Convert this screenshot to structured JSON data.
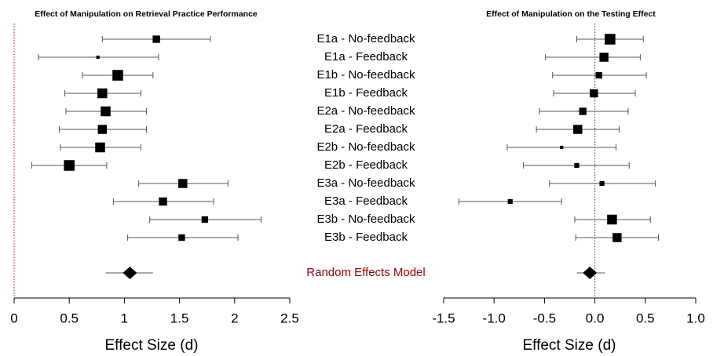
{
  "chart_data": [
    {
      "type": "forest",
      "title": "Effect of Manipulation on Retrieval Practice Performance",
      "xlabel": "Effect Size (d)",
      "categories": [
        "E1a - No-feedback",
        "E1a - Feedback",
        "E1b - No-feedback",
        "E1b - Feedback",
        "E2a - No-feedback",
        "E2a - Feedback",
        "E2b - No-feedback",
        "E2b - Feedback",
        "E3a - No-feedback",
        "E3a - Feedback",
        "E3b - No-feedback",
        "E3b - Feedback"
      ],
      "values": [
        1.29,
        0.76,
        0.94,
        0.8,
        0.83,
        0.8,
        0.78,
        0.5,
        1.53,
        1.35,
        1.73,
        1.52
      ],
      "lower": [
        0.8,
        0.22,
        0.62,
        0.46,
        0.47,
        0.41,
        0.42,
        0.16,
        1.13,
        0.9,
        1.23,
        1.03
      ],
      "upper": [
        1.78,
        1.31,
        1.26,
        1.15,
        1.2,
        1.2,
        1.15,
        0.84,
        1.94,
        1.81,
        2.24,
        2.03
      ],
      "weights": [
        8.1,
        1.6,
        16.9,
        14.4,
        14.4,
        12.1,
        14.4,
        16.9,
        12.1,
        10,
        6.4,
        6.4
      ],
      "model_label": "Random Effects Model",
      "model": {
        "value": 1.05,
        "lower": 0.83,
        "upper": 1.26
      },
      "xlim": [
        0,
        2.5
      ],
      "xticks": [
        0,
        0.5,
        1,
        1.5,
        2,
        2.5
      ],
      "ref_line": 0,
      "ref_color": "#c00000",
      "color": "#000000"
    },
    {
      "type": "forest",
      "title": "Effect of Manipulation on the Testing Effect",
      "xlabel": "Effect Size (d)",
      "values": [
        0.15,
        0.09,
        0.04,
        -0.01,
        -0.12,
        -0.17,
        -0.33,
        -0.18,
        0.07,
        -0.84,
        0.17,
        0.22
      ],
      "lower": [
        -0.18,
        -0.49,
        -0.42,
        -0.41,
        -0.55,
        -0.58,
        -0.87,
        -0.71,
        -0.45,
        -1.35,
        -0.2,
        -0.19
      ],
      "upper": [
        0.48,
        0.45,
        0.51,
        0.4,
        0.33,
        0.24,
        0.21,
        0.34,
        0.6,
        -0.33,
        0.55,
        0.63
      ],
      "weights": [
        16.9,
        12.1,
        6.4,
        10,
        8.1,
        12.1,
        1.6,
        3.6,
        3.6,
        3.6,
        14.4,
        12.1
      ],
      "model": {
        "value": -0.05,
        "lower": -0.18,
        "upper": 0.1
      },
      "xlim": [
        -1.5,
        1.0
      ],
      "xticks": [
        -1.5,
        {
          "value": -1.0,
          "label": "-1.0"
        },
        -0.5,
        {
          "value": 0.0,
          "label": "0.0"
        },
        0.5,
        {
          "value": 1.0,
          "label": "1.0"
        }
      ],
      "ref_line": 0,
      "ref_color": "#c00000",
      "color": "#000000"
    }
  ]
}
